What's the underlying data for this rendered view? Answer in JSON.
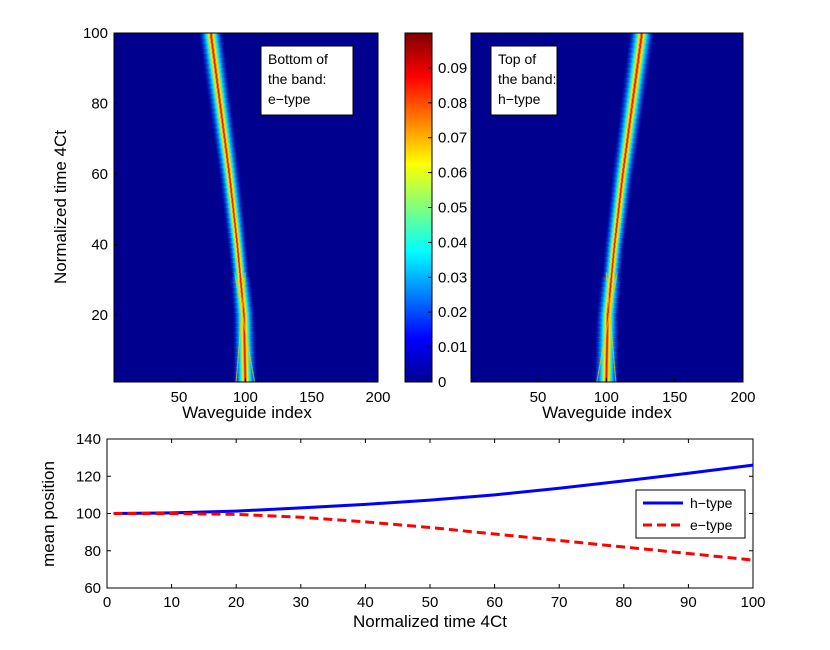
{
  "chart_data": [
    {
      "type": "heatmap",
      "name": "bottom-band",
      "xlabel": "Waveguide index",
      "ylabel": "Normalized time 4Ct",
      "xlim": [
        1,
        200
      ],
      "ylim": [
        1,
        100
      ],
      "xticks": [
        "50",
        "100",
        "150",
        "200"
      ],
      "yticks": [
        "20",
        "40",
        "60",
        "80",
        "100"
      ],
      "annotation": [
        "Bottom of",
        "the band:",
        "e−type"
      ],
      "beam_center": [
        {
          "t": 1,
          "x": 100
        },
        {
          "t": 20,
          "x": 99
        },
        {
          "t": 40,
          "x": 94
        },
        {
          "t": 60,
          "x": 88
        },
        {
          "t": 80,
          "x": 81
        },
        {
          "t": 100,
          "x": 74
        }
      ]
    },
    {
      "type": "heatmap",
      "name": "colorbar",
      "ticks": [
        "0",
        "0.01",
        "0.02",
        "0.03",
        "0.04",
        "0.05",
        "0.06",
        "0.07",
        "0.08",
        "0.09"
      ],
      "range": [
        0,
        0.1
      ]
    },
    {
      "type": "heatmap",
      "name": "top-band",
      "xlabel": "Waveguide index",
      "xlim": [
        1,
        200
      ],
      "ylim": [
        1,
        100
      ],
      "xticks": [
        "50",
        "100",
        "150",
        "200"
      ],
      "annotation": [
        "Top of",
        "the band:",
        "h−type"
      ],
      "beam_center": [
        {
          "t": 1,
          "x": 100
        },
        {
          "t": 20,
          "x": 101
        },
        {
          "t": 40,
          "x": 106
        },
        {
          "t": 60,
          "x": 112
        },
        {
          "t": 80,
          "x": 119
        },
        {
          "t": 100,
          "x": 126
        }
      ]
    },
    {
      "type": "line",
      "name": "mean-position",
      "xlabel": "Normalized time 4Ct",
      "ylabel": "mean position",
      "xlim": [
        0,
        100
      ],
      "ylim": [
        60,
        140
      ],
      "xticks": [
        "0",
        "10",
        "20",
        "30",
        "40",
        "50",
        "60",
        "70",
        "80",
        "90",
        "100"
      ],
      "yticks": [
        "60",
        "80",
        "100",
        "120",
        "140"
      ],
      "legend_position": "right",
      "series": [
        {
          "name": "h−type",
          "color": "#0000ff",
          "style": "solid",
          "x": [
            1,
            10,
            20,
            30,
            40,
            50,
            60,
            70,
            80,
            90,
            100
          ],
          "y": [
            100,
            100.3,
            101.3,
            103,
            104.9,
            107.2,
            110,
            113.6,
            117.5,
            121.6,
            126
          ]
        },
        {
          "name": "e−type",
          "color": "#ff0000",
          "style": "dashed",
          "x": [
            1,
            10,
            20,
            30,
            40,
            50,
            60,
            70,
            80,
            90,
            100
          ],
          "y": [
            100,
            100,
            99.5,
            98,
            95.5,
            92.5,
            89,
            85.5,
            82,
            78.5,
            75
          ]
        }
      ]
    }
  ]
}
